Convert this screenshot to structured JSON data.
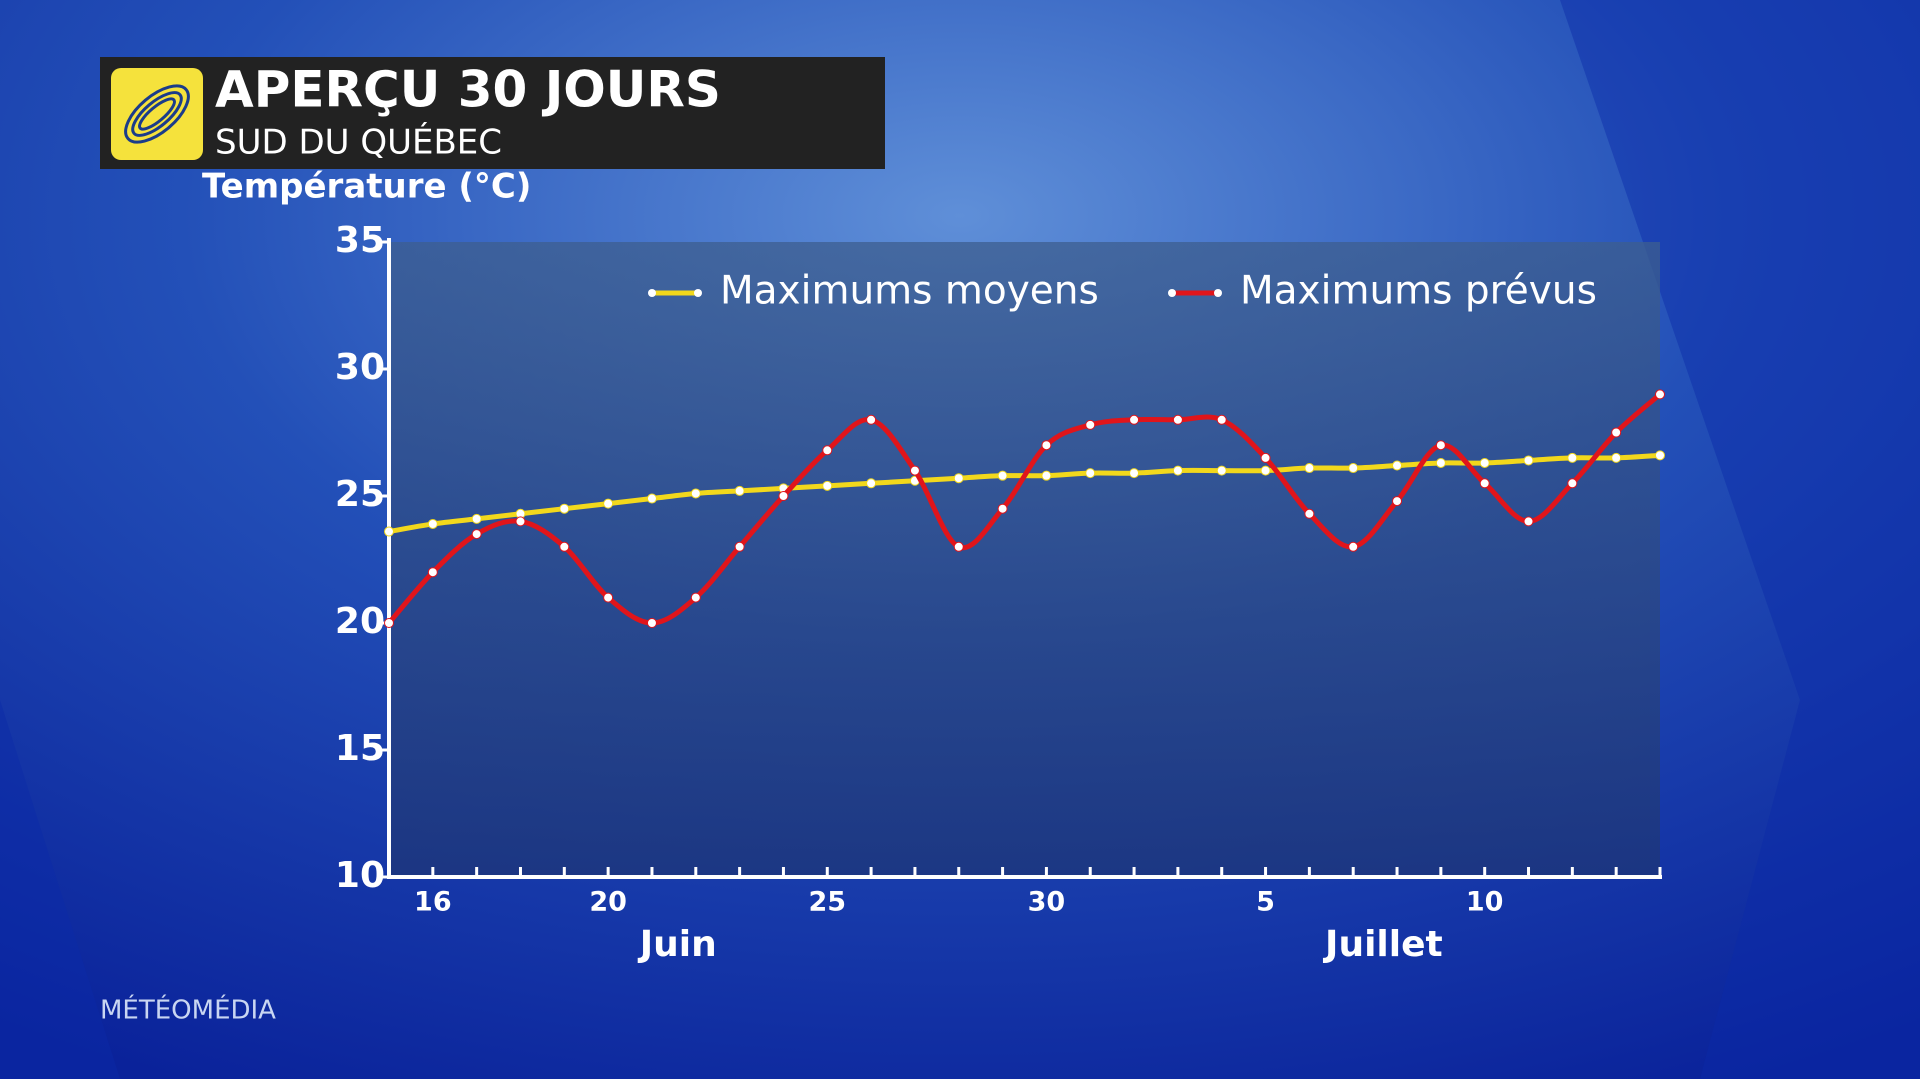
{
  "chart_data": {
    "type": "line",
    "title": "APERÇU 30 JOURS",
    "subtitle": "SUD DU QUÉBEC",
    "y_label": "Température (°C)",
    "source": "MÉTÉOMÉDIA",
    "month_labels": [
      "Juin",
      "Juillet"
    ],
    "categories": [
      null,
      "16",
      null,
      null,
      null,
      "20",
      null,
      null,
      null,
      null,
      "25",
      null,
      null,
      null,
      null,
      "30",
      null,
      null,
      null,
      null,
      "5",
      null,
      null,
      null,
      null,
      "10",
      null,
      null,
      null,
      null
    ],
    "series": [
      {
        "name": "Maximums moyens",
        "color": "#f2d81c",
        "values": [
          23.6,
          23.9,
          24.1,
          24.3,
          24.5,
          24.7,
          24.9,
          25.1,
          25.2,
          25.3,
          25.4,
          25.5,
          25.6,
          25.7,
          25.8,
          25.8,
          25.9,
          25.9,
          26.0,
          26.0,
          26.0,
          26.1,
          26.1,
          26.2,
          26.3,
          26.3,
          26.4,
          26.5,
          26.5,
          26.6
        ]
      },
      {
        "name": "Maximums prévus",
        "color": "#e0151b",
        "values": [
          20,
          22,
          23.5,
          24,
          23,
          21,
          20,
          21,
          23,
          25,
          26.8,
          28,
          26,
          23,
          24.5,
          27,
          27.8,
          28,
          28,
          28,
          26.5,
          24.3,
          23,
          24.8,
          27,
          25.5,
          24,
          25.5,
          27.5,
          29
        ]
      }
    ],
    "ylim": [
      10,
      35
    ],
    "yticks": [
      10,
      15,
      20,
      25,
      30,
      35
    ],
    "grid": false,
    "legend": "top-right"
  }
}
